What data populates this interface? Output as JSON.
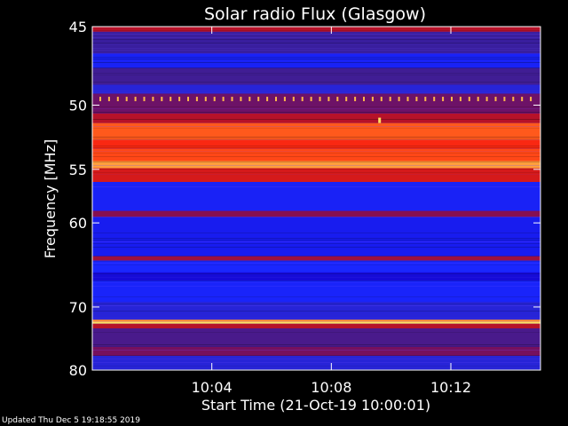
{
  "chart_data": {
    "type": "heatmap",
    "title": "Solar radio Flux (Glasgow)",
    "xlabel": "Start Time (21-Oct-19 10:00:01)",
    "ylabel": "Frequency [MHz]",
    "x_ticks": [
      "10:04",
      "10:08",
      "10:12"
    ],
    "x_tick_minutes": [
      4,
      8,
      12
    ],
    "xlim_minutes": [
      0,
      15
    ],
    "y_ticks": [
      45,
      50,
      55,
      60,
      70,
      80
    ],
    "ylim": [
      45,
      80
    ],
    "y_scale": "reciprocal",
    "colormap": [
      "#1400c8",
      "#1a28ff",
      "#3a1e9a",
      "#7a0f5a",
      "#c01220",
      "#ff2a10",
      "#ff6a20",
      "#ffe060"
    ],
    "bands": [
      {
        "f_from": 45.0,
        "f_to": 45.3,
        "level": 0.55
      },
      {
        "f_from": 45.3,
        "f_to": 46.6,
        "level": 0.28
      },
      {
        "f_from": 46.6,
        "f_to": 47.5,
        "level": 0.12
      },
      {
        "f_from": 47.5,
        "f_to": 48.6,
        "level": 0.3
      },
      {
        "f_from": 48.6,
        "f_to": 49.2,
        "level": 0.2
      },
      {
        "f_from": 49.2,
        "f_to": 50.6,
        "level": 0.4
      },
      {
        "f_from": 50.6,
        "f_to": 51.3,
        "level": 0.55
      },
      {
        "f_from": 51.3,
        "f_to": 52.6,
        "level": 0.82
      },
      {
        "f_from": 52.6,
        "f_to": 53.3,
        "level": 0.7
      },
      {
        "f_from": 53.3,
        "f_to": 54.3,
        "level": 0.78
      },
      {
        "f_from": 54.3,
        "f_to": 54.9,
        "level": 0.92
      },
      {
        "f_from": 54.9,
        "f_to": 56.1,
        "level": 0.62
      },
      {
        "f_from": 56.1,
        "f_to": 58.8,
        "level": 0.12
      },
      {
        "f_from": 58.8,
        "f_to": 59.4,
        "level": 0.45
      },
      {
        "f_from": 59.4,
        "f_to": 63.6,
        "level": 0.1
      },
      {
        "f_from": 63.6,
        "f_to": 64.1,
        "level": 0.5
      },
      {
        "f_from": 64.1,
        "f_to": 65.5,
        "level": 0.14
      },
      {
        "f_from": 65.5,
        "f_to": 66.5,
        "level": 0.04
      },
      {
        "f_from": 66.5,
        "f_to": 69.3,
        "level": 0.13
      },
      {
        "f_from": 69.3,
        "f_to": 71.8,
        "level": 0.2
      },
      {
        "f_from": 71.8,
        "f_to": 72.1,
        "level": 0.9
      },
      {
        "f_from": 72.1,
        "f_to": 72.4,
        "level": 1.0
      },
      {
        "f_from": 72.4,
        "f_to": 73.1,
        "level": 0.55
      },
      {
        "f_from": 73.1,
        "f_to": 76.0,
        "level": 0.32
      },
      {
        "f_from": 76.0,
        "f_to": 77.5,
        "level": 0.42
      },
      {
        "f_from": 77.5,
        "f_to": 80.0,
        "level": 0.2
      }
    ],
    "periodic_marks": {
      "freq": 49.6,
      "level": 0.95,
      "count": 50
    },
    "burst": {
      "minute": 9.6,
      "freq": 51.1,
      "level": 1.0
    },
    "grid": false,
    "legend": "none"
  },
  "footer": {
    "updated": "Updated Thu Dec  5 19:18:55 2019"
  }
}
